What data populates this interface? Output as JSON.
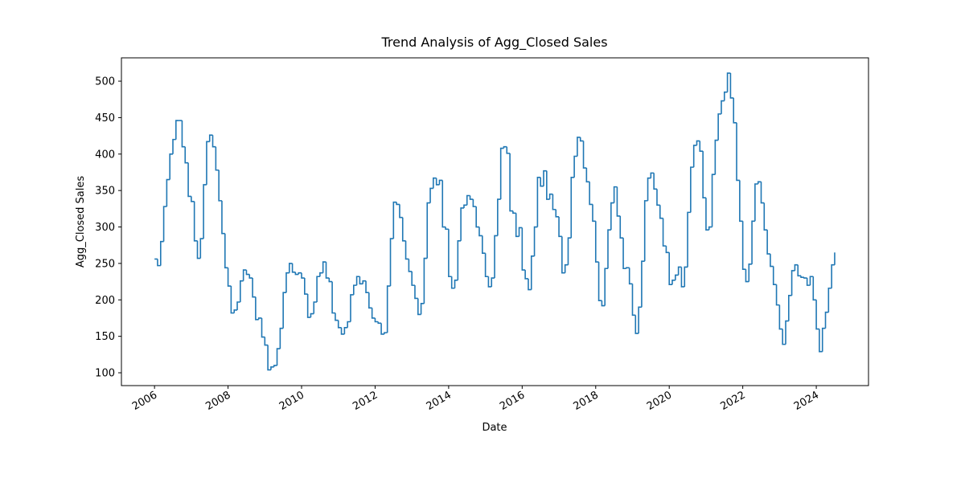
{
  "chart_data": {
    "type": "line",
    "step": "post",
    "title": "Trend Analysis of Agg_Closed Sales",
    "x_label": "Date",
    "y_label": "Agg_Closed Sales",
    "x": [
      2006.0,
      2006.083,
      2006.167,
      2006.25,
      2006.333,
      2006.417,
      2006.5,
      2006.583,
      2006.667,
      2006.75,
      2006.833,
      2006.917,
      2007.0,
      2007.083,
      2007.167,
      2007.25,
      2007.333,
      2007.417,
      2007.5,
      2007.583,
      2007.667,
      2007.75,
      2007.833,
      2007.917,
      2008.0,
      2008.083,
      2008.167,
      2008.25,
      2008.333,
      2008.417,
      2008.5,
      2008.583,
      2008.667,
      2008.75,
      2008.833,
      2008.917,
      2009.0,
      2009.083,
      2009.167,
      2009.25,
      2009.333,
      2009.417,
      2009.5,
      2009.583,
      2009.667,
      2009.75,
      2009.833,
      2009.917,
      2010.0,
      2010.083,
      2010.167,
      2010.25,
      2010.333,
      2010.417,
      2010.5,
      2010.583,
      2010.667,
      2010.75,
      2010.833,
      2010.917,
      2011.0,
      2011.083,
      2011.167,
      2011.25,
      2011.333,
      2011.417,
      2011.5,
      2011.583,
      2011.667,
      2011.75,
      2011.833,
      2011.917,
      2012.0,
      2012.083,
      2012.167,
      2012.25,
      2012.333,
      2012.417,
      2012.5,
      2012.583,
      2012.667,
      2012.75,
      2012.833,
      2012.917,
      2013.0,
      2013.083,
      2013.167,
      2013.25,
      2013.333,
      2013.417,
      2013.5,
      2013.583,
      2013.667,
      2013.75,
      2013.833,
      2013.917,
      2014.0,
      2014.083,
      2014.167,
      2014.25,
      2014.333,
      2014.417,
      2014.5,
      2014.583,
      2014.667,
      2014.75,
      2014.833,
      2014.917,
      2015.0,
      2015.083,
      2015.167,
      2015.25,
      2015.333,
      2015.417,
      2015.5,
      2015.583,
      2015.667,
      2015.75,
      2015.833,
      2015.917,
      2016.0,
      2016.083,
      2016.167,
      2016.25,
      2016.333,
      2016.417,
      2016.5,
      2016.583,
      2016.667,
      2016.75,
      2016.833,
      2016.917,
      2017.0,
      2017.083,
      2017.167,
      2017.25,
      2017.333,
      2017.417,
      2017.5,
      2017.583,
      2017.667,
      2017.75,
      2017.833,
      2017.917,
      2018.0,
      2018.083,
      2018.167,
      2018.25,
      2018.333,
      2018.417,
      2018.5,
      2018.583,
      2018.667,
      2018.75,
      2018.833,
      2018.917,
      2019.0,
      2019.083,
      2019.167,
      2019.25,
      2019.333,
      2019.417,
      2019.5,
      2019.583,
      2019.667,
      2019.75,
      2019.833,
      2019.917,
      2020.0,
      2020.083,
      2020.167,
      2020.25,
      2020.333,
      2020.417,
      2020.5,
      2020.583,
      2020.667,
      2020.75,
      2020.833,
      2020.917,
      2021.0,
      2021.083,
      2021.167,
      2021.25,
      2021.333,
      2021.417,
      2021.5,
      2021.583,
      2021.667,
      2021.75,
      2021.833,
      2021.917,
      2022.0,
      2022.083,
      2022.167,
      2022.25,
      2022.333,
      2022.417,
      2022.5,
      2022.583,
      2022.667,
      2022.75,
      2022.833,
      2022.917,
      2023.0,
      2023.083,
      2023.167,
      2023.25,
      2023.333,
      2023.417,
      2023.5,
      2023.583,
      2023.667,
      2023.75,
      2023.833,
      2023.917,
      2024.0,
      2024.083,
      2024.167,
      2024.25,
      2024.333,
      2024.417,
      2024.5
    ],
    "series": [
      {
        "color": "#1f77b4",
        "values": [
          256,
          247,
          280,
          328,
          365,
          400,
          420,
          446,
          446,
          410,
          388,
          342,
          335,
          281,
          257,
          284,
          358,
          417,
          426,
          410,
          378,
          336,
          291,
          244,
          219,
          182,
          186,
          197,
          226,
          241,
          235,
          230,
          204,
          173,
          175,
          149,
          138,
          104,
          108,
          110,
          133,
          161,
          210,
          237,
          250,
          238,
          235,
          237,
          230,
          208,
          176,
          181,
          197,
          232,
          237,
          252,
          230,
          225,
          182,
          172,
          162,
          153,
          162,
          170,
          207,
          220,
          232,
          222,
          226,
          210,
          189,
          175,
          170,
          168,
          153,
          155,
          219,
          284,
          334,
          331,
          313,
          281,
          256,
          239,
          220,
          202,
          180,
          195,
          257,
          333,
          353,
          367,
          358,
          364,
          300,
          297,
          232,
          216,
          227,
          281,
          326,
          330,
          343,
          338,
          328,
          300,
          288,
          264,
          232,
          218,
          230,
          288,
          338,
          408,
          410,
          401,
          322,
          319,
          287,
          299,
          241,
          229,
          214,
          260,
          300,
          368,
          356,
          377,
          338,
          345,
          324,
          314,
          287,
          237,
          248,
          285,
          368,
          397,
          423,
          418,
          381,
          362,
          331,
          308,
          252,
          199,
          192,
          243,
          296,
          333,
          355,
          315,
          285,
          243,
          244,
          222,
          179,
          154,
          190,
          253,
          336,
          367,
          374,
          352,
          330,
          312,
          274,
          265,
          221,
          227,
          234,
          245,
          218,
          245,
          320,
          382,
          412,
          418,
          404,
          340,
          296,
          300,
          372,
          419,
          455,
          473,
          485,
          511,
          477,
          443,
          364,
          308,
          242,
          225,
          249,
          308,
          359,
          362,
          333,
          296,
          263,
          246,
          221,
          193,
          160,
          139,
          171,
          206,
          240,
          248,
          233,
          231,
          230,
          220,
          232,
          200,
          160,
          129,
          161,
          183,
          216,
          248,
          265
        ]
      }
    ],
    "xlim": [
      2005.1,
      2025.42
    ],
    "xticks": [
      2006,
      2008,
      2010,
      2012,
      2014,
      2016,
      2018,
      2020,
      2022,
      2024
    ],
    "ylim": [
      82.4,
      532
    ],
    "yticks": [
      100,
      150,
      200,
      250,
      300,
      350,
      400,
      450,
      500
    ]
  }
}
